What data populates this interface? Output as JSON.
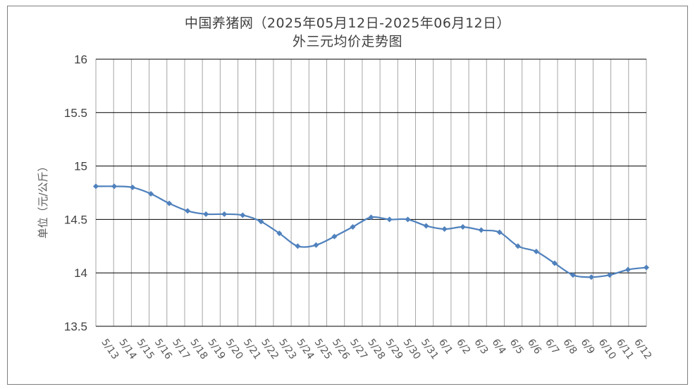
{
  "chart_data": {
    "type": "line",
    "title_line1": "中国养猪网（2025年05月12日-2025年06月12日）",
    "title_line2": "外三元均价走势图",
    "ylabel": "单位（元/公斤）",
    "ylim": [
      13.5,
      16
    ],
    "yticks": [
      "13.5",
      "14",
      "14.5",
      "15",
      "15.5",
      "16"
    ],
    "grid": true,
    "line_color": "#4f81bd",
    "categories": [
      "5/13",
      "5/14",
      "5/15",
      "5/16",
      "5/17",
      "5/18",
      "5/19",
      "5/20",
      "5/21",
      "5/22",
      "5/23",
      "5/24",
      "5/25",
      "5/26",
      "5/27",
      "5/28",
      "5/29",
      "5/30",
      "5/31",
      "6/1",
      "6/2",
      "6/3",
      "6/4",
      "6/5",
      "6/6",
      "6/7",
      "6/8",
      "6/9",
      "6/10",
      "6/11",
      "6/12"
    ],
    "series": [
      {
        "values": [
          14.81,
          14.81,
          14.8,
          14.74,
          14.65,
          14.58,
          14.55,
          14.55,
          14.54,
          14.48,
          14.37,
          14.25,
          14.26,
          14.34,
          14.43,
          14.52,
          14.5,
          14.5,
          14.44,
          14.41,
          14.43,
          14.4,
          14.38,
          14.25,
          14.2,
          14.09,
          13.98,
          13.96,
          13.98,
          14.03,
          14.05
        ]
      }
    ]
  }
}
